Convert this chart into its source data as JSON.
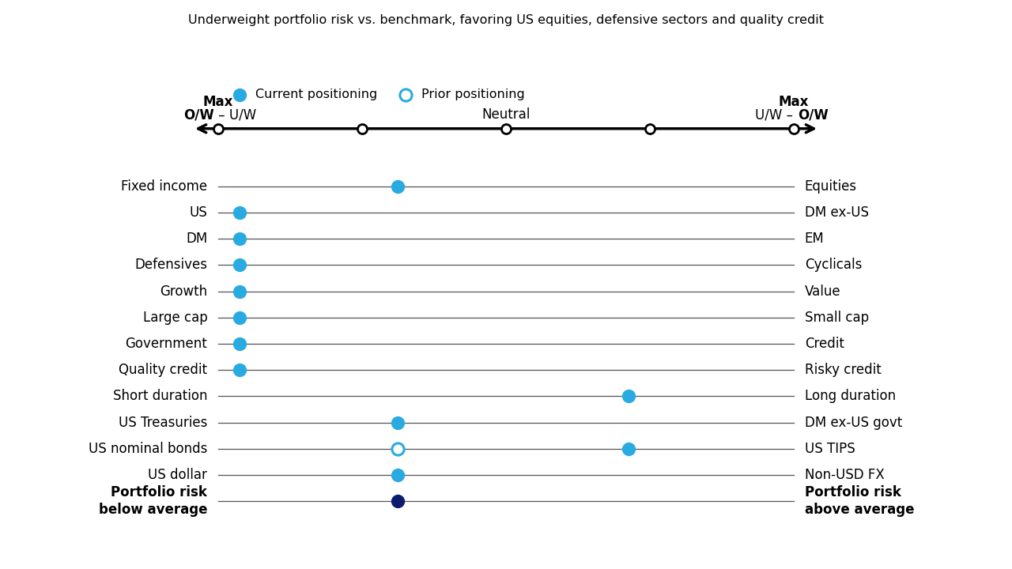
{
  "subtitle": "Underweight portfolio risk vs. benchmark, favoring US equities, defensive sectors and quality credit",
  "x_min": -4,
  "x_max": 4,
  "scale_ticks": [
    -4,
    -2,
    0,
    2,
    4
  ],
  "rows": [
    {
      "left": "Fixed income",
      "right": "Equities",
      "current": -1.5,
      "prior": null,
      "type": "current",
      "bold": false
    },
    {
      "left": "US",
      "right": "DM ex-US",
      "current": -3.7,
      "prior": null,
      "type": "current",
      "bold": false
    },
    {
      "left": "DM",
      "right": "EM",
      "current": -3.7,
      "prior": null,
      "type": "current",
      "bold": false
    },
    {
      "left": "Defensives",
      "right": "Cyclicals",
      "current": -3.7,
      "prior": null,
      "type": "current",
      "bold": false
    },
    {
      "left": "Growth",
      "right": "Value",
      "current": -3.7,
      "prior": null,
      "type": "current",
      "bold": false
    },
    {
      "left": "Large cap",
      "right": "Small cap",
      "current": -3.7,
      "prior": null,
      "type": "current",
      "bold": false
    },
    {
      "left": "Government",
      "right": "Credit",
      "current": -3.7,
      "prior": null,
      "type": "current",
      "bold": false
    },
    {
      "left": "Quality credit",
      "right": "Risky credit",
      "current": -3.7,
      "prior": null,
      "type": "current",
      "bold": false
    },
    {
      "left": "Short duration",
      "right": "Long duration",
      "current": 1.7,
      "prior": null,
      "type": "current",
      "bold": false
    },
    {
      "left": "US Treasuries",
      "right": "DM ex-US govt",
      "current": -1.5,
      "prior": null,
      "type": "current",
      "bold": false
    },
    {
      "left": "US nominal bonds",
      "right": "US TIPS",
      "current": 1.7,
      "prior": -1.5,
      "type": "both",
      "bold": false
    },
    {
      "left": "US dollar",
      "right": "Non-USD FX",
      "current": -1.5,
      "prior": null,
      "type": "current",
      "bold": false
    },
    {
      "left": "Portfolio risk\nbelow average",
      "right": "Portfolio risk\nabove average",
      "current": -1.5,
      "prior": null,
      "type": "dark",
      "bold": true
    }
  ],
  "current_color": "#29ABE2",
  "dark_color": "#0d1b6e",
  "prior_color_fill": "white",
  "prior_color_edge": "#29ABE2",
  "dot_size": 120,
  "line_color": "#555555",
  "background_color": "#ffffff"
}
